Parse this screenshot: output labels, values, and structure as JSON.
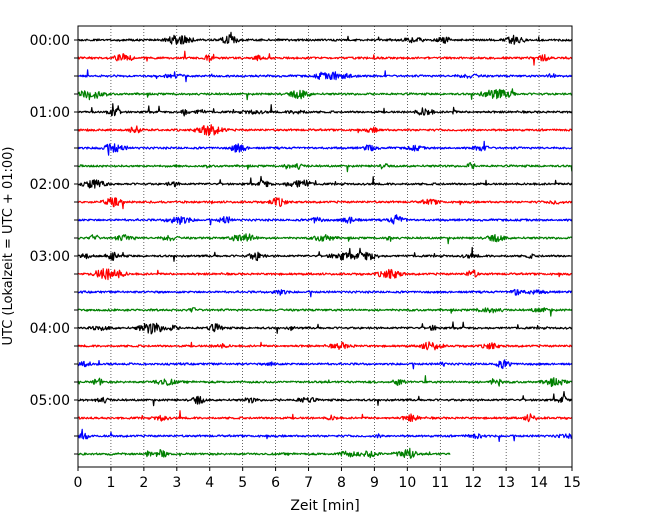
{
  "chart_data": {
    "type": "line",
    "title": "",
    "xlabel": "Zeit  [min]",
    "ylabel": "UTC (Lokalzeit = UTC + 01:00)",
    "xlim": [
      0,
      15
    ],
    "x_ticks": [
      "0",
      "1",
      "2",
      "3",
      "4",
      "5",
      "6",
      "7",
      "8",
      "9",
      "10",
      "11",
      "12",
      "13",
      "14",
      "15"
    ],
    "y_tick_labels": [
      "00:00",
      "01:00",
      "02:00",
      "03:00",
      "04:00",
      "05:00"
    ],
    "trace_interval_min": 15,
    "grid": "vertical dotted lines at each minute",
    "color_cycle": [
      "#000000",
      "#ff0000",
      "#0000ff",
      "#008000"
    ],
    "traces": [
      {
        "start": "00:00",
        "color": "#000000",
        "end_min": 15
      },
      {
        "start": "00:15",
        "color": "#ff0000",
        "end_min": 15
      },
      {
        "start": "00:30",
        "color": "#0000ff",
        "end_min": 15
      },
      {
        "start": "00:45",
        "color": "#008000",
        "end_min": 15
      },
      {
        "start": "01:00",
        "color": "#000000",
        "end_min": 15
      },
      {
        "start": "01:15",
        "color": "#ff0000",
        "end_min": 15
      },
      {
        "start": "01:30",
        "color": "#0000ff",
        "end_min": 15
      },
      {
        "start": "01:45",
        "color": "#008000",
        "end_min": 15
      },
      {
        "start": "02:00",
        "color": "#000000",
        "end_min": 15
      },
      {
        "start": "02:15",
        "color": "#ff0000",
        "end_min": 15
      },
      {
        "start": "02:30",
        "color": "#0000ff",
        "end_min": 15
      },
      {
        "start": "02:45",
        "color": "#008000",
        "end_min": 15
      },
      {
        "start": "03:00",
        "color": "#000000",
        "end_min": 15
      },
      {
        "start": "03:15",
        "color": "#ff0000",
        "end_min": 15
      },
      {
        "start": "03:30",
        "color": "#0000ff",
        "end_min": 15
      },
      {
        "start": "03:45",
        "color": "#008000",
        "end_min": 15
      },
      {
        "start": "04:00",
        "color": "#000000",
        "end_min": 15
      },
      {
        "start": "04:15",
        "color": "#ff0000",
        "end_min": 15
      },
      {
        "start": "04:30",
        "color": "#0000ff",
        "end_min": 15
      },
      {
        "start": "04:45",
        "color": "#008000",
        "end_min": 15
      },
      {
        "start": "05:00",
        "color": "#000000",
        "end_min": 15
      },
      {
        "start": "05:15",
        "color": "#ff0000",
        "end_min": 15
      },
      {
        "start": "05:30",
        "color": "#0000ff",
        "end_min": 15
      },
      {
        "start": "05:45",
        "color": "#008000",
        "end_min": 11.3
      }
    ]
  }
}
